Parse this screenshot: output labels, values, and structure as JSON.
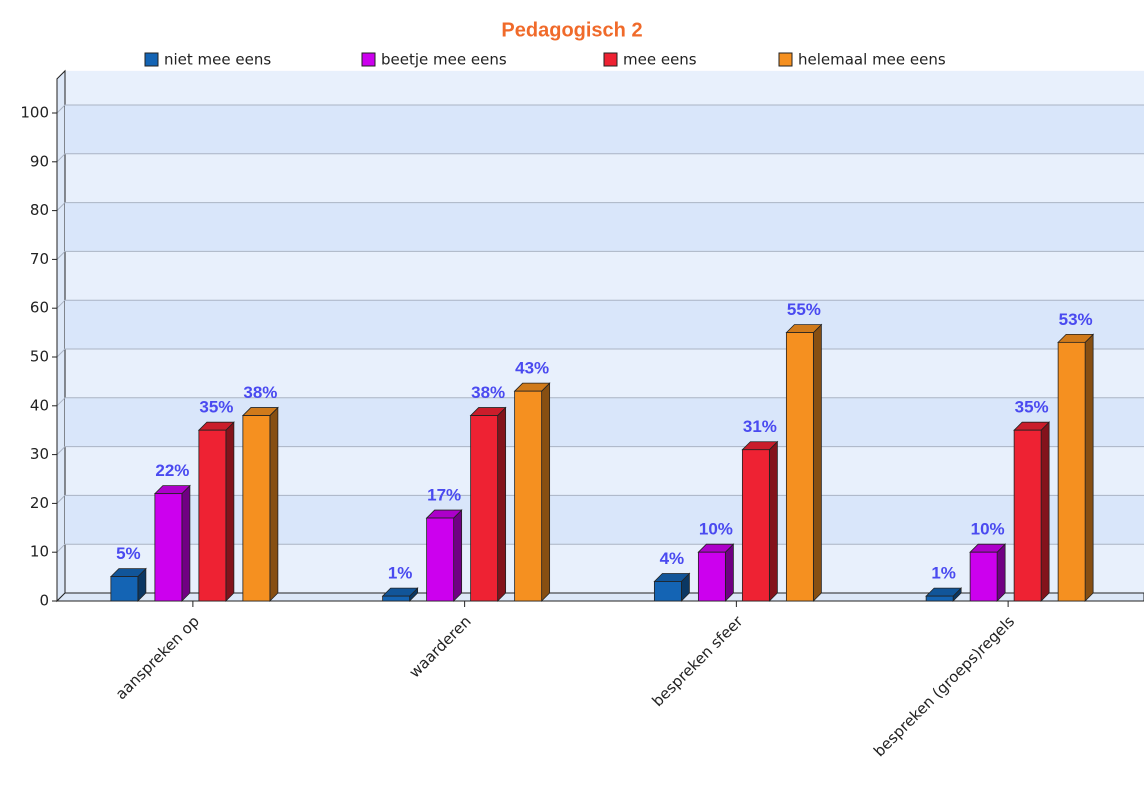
{
  "chart_data": {
    "type": "bar3d",
    "title": "Pedagogisch 2",
    "categories": [
      "aanspreken op",
      "waarderen",
      "bespreken sfeer",
      "bespreken (groeps)regels"
    ],
    "series": [
      {
        "name": "niet mee eens",
        "color": "#1464b4",
        "values": [
          5,
          1,
          4,
          1
        ],
        "value_labels": [
          "5%",
          "1%",
          "4%",
          "1%"
        ]
      },
      {
        "name": "beetje mee eens",
        "color": "#cc00ee",
        "values": [
          22,
          17,
          10,
          10
        ],
        "value_labels": [
          "22%",
          "17%",
          "10%",
          "10%"
        ]
      },
      {
        "name": "mee eens",
        "color": "#ee2233",
        "values": [
          35,
          38,
          31,
          35
        ],
        "value_labels": [
          "35%",
          "38%",
          "31%",
          "35%"
        ]
      },
      {
        "name": "helemaal mee eens",
        "color": "#f59020",
        "values": [
          38,
          43,
          55,
          53
        ],
        "value_labels": [
          "38%",
          "43%",
          "55%",
          "53%"
        ]
      }
    ],
    "ylim": [
      0,
      107
    ],
    "yticks": [
      0,
      10,
      20,
      30,
      40,
      50,
      60,
      70,
      80,
      90,
      100
    ],
    "grid": true,
    "legend": "top"
  }
}
